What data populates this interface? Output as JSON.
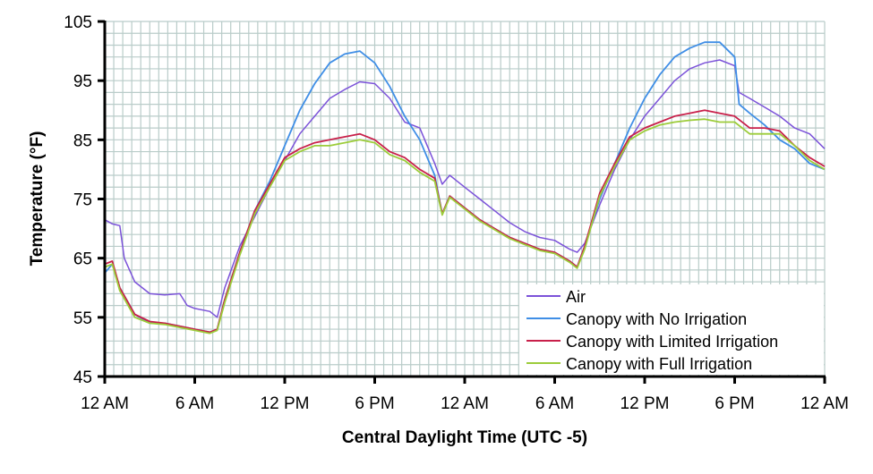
{
  "chart_data": {
    "type": "line",
    "title": "",
    "xlabel": "Central Daylight Time (UTC -5)",
    "ylabel": "Temperature (°F)",
    "xlim": [
      0,
      48
    ],
    "ylim": [
      45,
      105
    ],
    "yticks": [
      45,
      55,
      65,
      75,
      85,
      95,
      105
    ],
    "xtick_hours": [
      0,
      6,
      12,
      18,
      24,
      30,
      36,
      42,
      48
    ],
    "xtick_labels": [
      "12 AM",
      "6 AM",
      "12 PM",
      "6 PM",
      "12 AM",
      "6 AM",
      "12 PM",
      "6 PM",
      "12 AM"
    ],
    "grid": true,
    "legend_position": "bottom-right",
    "x_units": "hours from start",
    "series": [
      {
        "name": "Air",
        "color": "#7b52d9",
        "points": [
          [
            0,
            71.5
          ],
          [
            0.5,
            70.8
          ],
          [
            1,
            70.5
          ],
          [
            1.3,
            65
          ],
          [
            2,
            61
          ],
          [
            3,
            59
          ],
          [
            4,
            58.8
          ],
          [
            5,
            59
          ],
          [
            5.5,
            57
          ],
          [
            6,
            56.5
          ],
          [
            7,
            56
          ],
          [
            7.5,
            55
          ],
          [
            8,
            60
          ],
          [
            9,
            67
          ],
          [
            10,
            72
          ],
          [
            11,
            77
          ],
          [
            12,
            81.5
          ],
          [
            13,
            86
          ],
          [
            14,
            89
          ],
          [
            15,
            92
          ],
          [
            16,
            93.5
          ],
          [
            17,
            94.8
          ],
          [
            18,
            94.5
          ],
          [
            19,
            92
          ],
          [
            20,
            88
          ],
          [
            21,
            87
          ],
          [
            22,
            81
          ],
          [
            22.5,
            77.5
          ],
          [
            23,
            79
          ],
          [
            24,
            77
          ],
          [
            25,
            75
          ],
          [
            26,
            73
          ],
          [
            27,
            71
          ],
          [
            28,
            69.5
          ],
          [
            29,
            68.5
          ],
          [
            30,
            68
          ],
          [
            31,
            66.5
          ],
          [
            31.5,
            66
          ],
          [
            32,
            67.5
          ],
          [
            33,
            74
          ],
          [
            34,
            80
          ],
          [
            35,
            85
          ],
          [
            36,
            89
          ],
          [
            37,
            92
          ],
          [
            38,
            95
          ],
          [
            39,
            97
          ],
          [
            40,
            98
          ],
          [
            41,
            98.5
          ],
          [
            42,
            97.5
          ],
          [
            42.3,
            93
          ],
          [
            43,
            92
          ],
          [
            44,
            90.5
          ],
          [
            45,
            89
          ],
          [
            46,
            87
          ],
          [
            47,
            86
          ],
          [
            48,
            83.5
          ]
        ]
      },
      {
        "name": "Canopy with No Irrigation",
        "color": "#3f8ee6",
        "points": [
          [
            0,
            62.5
          ],
          [
            0.5,
            64
          ],
          [
            1,
            60
          ],
          [
            2,
            55.5
          ],
          [
            3,
            54
          ],
          [
            4,
            54
          ],
          [
            5,
            53.5
          ],
          [
            6,
            53
          ],
          [
            7,
            52.5
          ],
          [
            7.5,
            53
          ],
          [
            8,
            58
          ],
          [
            9,
            66
          ],
          [
            10,
            73
          ],
          [
            11,
            78
          ],
          [
            12,
            84
          ],
          [
            13,
            90
          ],
          [
            14,
            94.5
          ],
          [
            15,
            98
          ],
          [
            16,
            99.5
          ],
          [
            17,
            100
          ],
          [
            18,
            98
          ],
          [
            19,
            94
          ],
          [
            20,
            89
          ],
          [
            21,
            85
          ],
          [
            22,
            79
          ],
          [
            22.5,
            72.5
          ],
          [
            23,
            75.5
          ],
          [
            24,
            73.5
          ],
          [
            25,
            71.5
          ],
          [
            26,
            70
          ],
          [
            27,
            68.5
          ],
          [
            28,
            67.5
          ],
          [
            29,
            66.5
          ],
          [
            30,
            66
          ],
          [
            31,
            64.5
          ],
          [
            31.5,
            63.5
          ],
          [
            32,
            67
          ],
          [
            33,
            75
          ],
          [
            34,
            81
          ],
          [
            35,
            87
          ],
          [
            36,
            92
          ],
          [
            37,
            96
          ],
          [
            38,
            99
          ],
          [
            39,
            100.5
          ],
          [
            40,
            101.5
          ],
          [
            41,
            101.5
          ],
          [
            42,
            99
          ],
          [
            42.3,
            91
          ],
          [
            43,
            89.5
          ],
          [
            44,
            87.5
          ],
          [
            45,
            85
          ],
          [
            46,
            83.5
          ],
          [
            47,
            81
          ],
          [
            48,
            80
          ]
        ]
      },
      {
        "name": "Canopy with Limited Irrigation",
        "color": "#c8204a",
        "points": [
          [
            0,
            64
          ],
          [
            0.5,
            64.5
          ],
          [
            1,
            60
          ],
          [
            2,
            55.5
          ],
          [
            3,
            54.3
          ],
          [
            4,
            54
          ],
          [
            5,
            53.5
          ],
          [
            6,
            53
          ],
          [
            7,
            52.5
          ],
          [
            7.5,
            53
          ],
          [
            8,
            58
          ],
          [
            9,
            66
          ],
          [
            10,
            73
          ],
          [
            11,
            77.5
          ],
          [
            12,
            82
          ],
          [
            13,
            83.5
          ],
          [
            14,
            84.5
          ],
          [
            15,
            85
          ],
          [
            16,
            85.5
          ],
          [
            17,
            86
          ],
          [
            18,
            85
          ],
          [
            19,
            83
          ],
          [
            20,
            82
          ],
          [
            21,
            80
          ],
          [
            22,
            78.5
          ],
          [
            22.5,
            72.5
          ],
          [
            23,
            75.5
          ],
          [
            24,
            73.5
          ],
          [
            25,
            71.5
          ],
          [
            26,
            70
          ],
          [
            27,
            68.5
          ],
          [
            28,
            67.5
          ],
          [
            29,
            66.5
          ],
          [
            30,
            66
          ],
          [
            31,
            64.5
          ],
          [
            31.5,
            63.5
          ],
          [
            32,
            67
          ],
          [
            33,
            76
          ],
          [
            34,
            81
          ],
          [
            35,
            85.5
          ],
          [
            36,
            87
          ],
          [
            37,
            88
          ],
          [
            38,
            89
          ],
          [
            39,
            89.5
          ],
          [
            40,
            90
          ],
          [
            41,
            89.5
          ],
          [
            42,
            89
          ],
          [
            43,
            87
          ],
          [
            44,
            87
          ],
          [
            45,
            86.5
          ],
          [
            46,
            84
          ],
          [
            47,
            82
          ],
          [
            48,
            80.5
          ]
        ]
      },
      {
        "name": "Canopy with Full Irrigation",
        "color": "#9ccc3a",
        "points": [
          [
            0,
            63.5
          ],
          [
            0.5,
            64
          ],
          [
            1,
            59.5
          ],
          [
            2,
            55
          ],
          [
            3,
            54
          ],
          [
            4,
            53.8
          ],
          [
            5,
            53.3
          ],
          [
            6,
            52.8
          ],
          [
            7,
            52.3
          ],
          [
            7.5,
            52.8
          ],
          [
            8,
            57.5
          ],
          [
            9,
            65.5
          ],
          [
            10,
            72.5
          ],
          [
            11,
            77
          ],
          [
            12,
            81.5
          ],
          [
            13,
            83
          ],
          [
            14,
            84
          ],
          [
            15,
            84
          ],
          [
            16,
            84.5
          ],
          [
            17,
            85
          ],
          [
            18,
            84.5
          ],
          [
            19,
            82.5
          ],
          [
            20,
            81.5
          ],
          [
            21,
            79.5
          ],
          [
            22,
            78
          ],
          [
            22.5,
            72.3
          ],
          [
            23,
            75.3
          ],
          [
            24,
            73.3
          ],
          [
            25,
            71.3
          ],
          [
            26,
            69.8
          ],
          [
            27,
            68.3
          ],
          [
            28,
            67.3
          ],
          [
            29,
            66.3
          ],
          [
            30,
            65.8
          ],
          [
            31,
            64.3
          ],
          [
            31.5,
            63.3
          ],
          [
            32,
            66.5
          ],
          [
            33,
            75.5
          ],
          [
            34,
            80.5
          ],
          [
            35,
            85
          ],
          [
            36,
            86.5
          ],
          [
            37,
            87.5
          ],
          [
            38,
            88
          ],
          [
            39,
            88.3
          ],
          [
            40,
            88.5
          ],
          [
            41,
            88
          ],
          [
            42,
            88
          ],
          [
            43,
            86
          ],
          [
            44,
            86
          ],
          [
            45,
            86
          ],
          [
            46,
            84
          ],
          [
            47,
            81.5
          ],
          [
            48,
            80
          ]
        ]
      }
    ]
  }
}
